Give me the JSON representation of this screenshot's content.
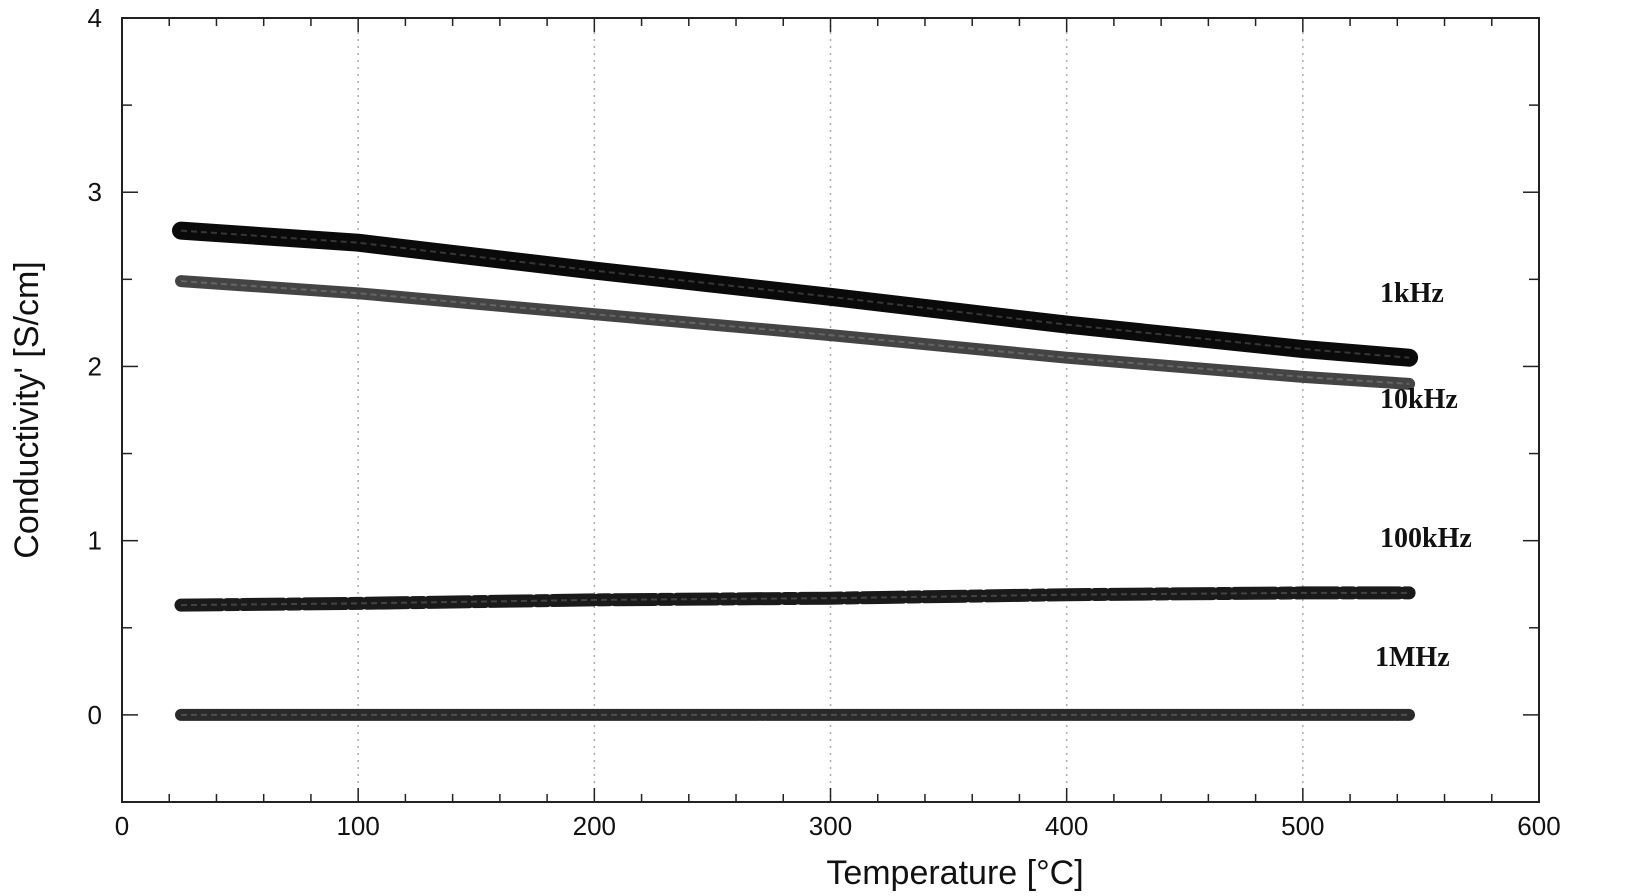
{
  "chart_data": {
    "type": "line",
    "xlabel": "Temperature [°C]",
    "ylabel": "Conductivity' [S/cm]",
    "xlim": [
      0,
      600
    ],
    "ylim": [
      -0.5,
      4
    ],
    "xticks": [
      0,
      100,
      200,
      300,
      400,
      500,
      600
    ],
    "yticks": [
      0,
      1,
      2,
      3,
      4
    ],
    "grid": "vertical dotted",
    "series": [
      {
        "name": "1kHz",
        "x": [
          25,
          100,
          200,
          300,
          400,
          500,
          545
        ],
        "y": [
          2.78,
          2.71,
          2.55,
          2.4,
          2.24,
          2.1,
          2.05
        ]
      },
      {
        "name": "10kHz",
        "x": [
          25,
          100,
          200,
          300,
          400,
          500,
          545
        ],
        "y": [
          2.49,
          2.42,
          2.3,
          2.18,
          2.05,
          1.94,
          1.9
        ]
      },
      {
        "name": "100kHz",
        "x": [
          25,
          100,
          200,
          300,
          400,
          500,
          545
        ],
        "y": [
          0.63,
          0.64,
          0.66,
          0.67,
          0.69,
          0.7,
          0.7
        ]
      },
      {
        "name": "1MHz",
        "x": [
          25,
          100,
          200,
          300,
          400,
          500,
          545
        ],
        "y": [
          0.0,
          0.0,
          0.0,
          0.0,
          0.0,
          0.0,
          0.0
        ]
      }
    ]
  }
}
